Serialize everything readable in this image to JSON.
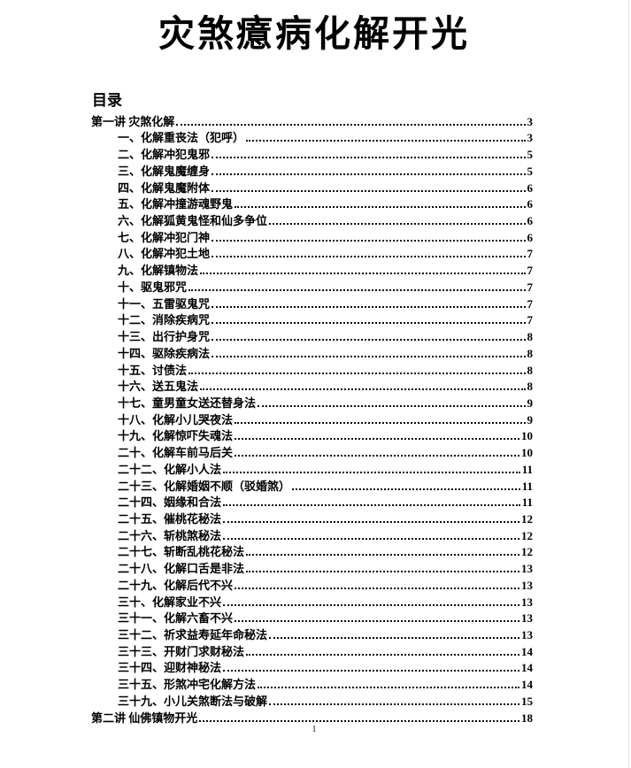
{
  "document": {
    "title": "灾煞癔病化解开光",
    "toc_heading": "目录",
    "footer_page_number": "1",
    "toc_entries": [
      {
        "label": "第一讲 灾煞化解",
        "page": "3",
        "level": 0
      },
      {
        "label": "一、化解重丧法（犯呼）",
        "page": "3",
        "level": 1
      },
      {
        "label": "二、化解冲犯鬼邪",
        "page": "5",
        "level": 1
      },
      {
        "label": "三、化解鬼魔缠身",
        "page": "5",
        "level": 1
      },
      {
        "label": "四、化解鬼魔附体",
        "page": "6",
        "level": 1
      },
      {
        "label": "五、化解冲撞游魂野鬼",
        "page": "6",
        "level": 1
      },
      {
        "label": "六、化解狐黄鬼怪和仙多争位",
        "page": "6",
        "level": 1
      },
      {
        "label": "七、化解冲犯门神",
        "page": "6",
        "level": 1
      },
      {
        "label": "八、化解冲犯土地",
        "page": "7",
        "level": 1
      },
      {
        "label": "九、化解镇物法",
        "page": "7",
        "level": 1
      },
      {
        "label": "十、驱鬼邪咒",
        "page": "7",
        "level": 1
      },
      {
        "label": "十一、五雷驱鬼咒",
        "page": "7",
        "level": 1
      },
      {
        "label": "十二、消除疾病咒",
        "page": "7",
        "level": 1
      },
      {
        "label": "十三、出行护身咒",
        "page": "8",
        "level": 1
      },
      {
        "label": "十四、驱除疾病法",
        "page": "8",
        "level": 1
      },
      {
        "label": "十五、讨债法",
        "page": "8",
        "level": 1
      },
      {
        "label": "十六、送五鬼法",
        "page": "8",
        "level": 1
      },
      {
        "label": "十七、童男童女送还替身法",
        "page": "9",
        "level": 1
      },
      {
        "label": "十八、化解小儿哭夜法",
        "page": "9",
        "level": 1
      },
      {
        "label": "十九、化解惊吓失魂法",
        "page": "10",
        "level": 1
      },
      {
        "label": "二十、化解车前马后关",
        "page": "10",
        "level": 1
      },
      {
        "label": "二十二、化解小人法",
        "page": "11",
        "level": 1
      },
      {
        "label": "二十三、化解婚姻不顺（驳婚煞）",
        "page": "11",
        "level": 1
      },
      {
        "label": "二十四、姻缘和合法",
        "page": "11",
        "level": 1
      },
      {
        "label": "二十五、催桃花秘法",
        "page": "12",
        "level": 1
      },
      {
        "label": "二十六、斩桃煞秘法",
        "page": "12",
        "level": 1
      },
      {
        "label": "二十七、斩断乱桃花秘法",
        "page": "12",
        "level": 1
      },
      {
        "label": "二十八、化解口舌是非法",
        "page": "13",
        "level": 1
      },
      {
        "label": "二十九、化解后代不兴",
        "page": "13",
        "level": 1
      },
      {
        "label": "三十、化解家业不兴",
        "page": "13",
        "level": 1
      },
      {
        "label": "三十一、化解六畜不兴",
        "page": "13",
        "level": 1
      },
      {
        "label": "三十二、祈求益寿延年命秘法",
        "page": "13",
        "level": 1
      },
      {
        "label": "三十三、开财门求财秘法",
        "page": "14",
        "level": 1
      },
      {
        "label": "三十四、迎财神秘法",
        "page": "14",
        "level": 1
      },
      {
        "label": "三十五、形煞冲宅化解方法",
        "page": "14",
        "level": 1
      },
      {
        "label": "三十九、小儿关煞断法与破解",
        "page": "15",
        "level": 1
      },
      {
        "label": "第二讲 仙佛镇物开光",
        "page": "18",
        "level": 0
      }
    ]
  }
}
